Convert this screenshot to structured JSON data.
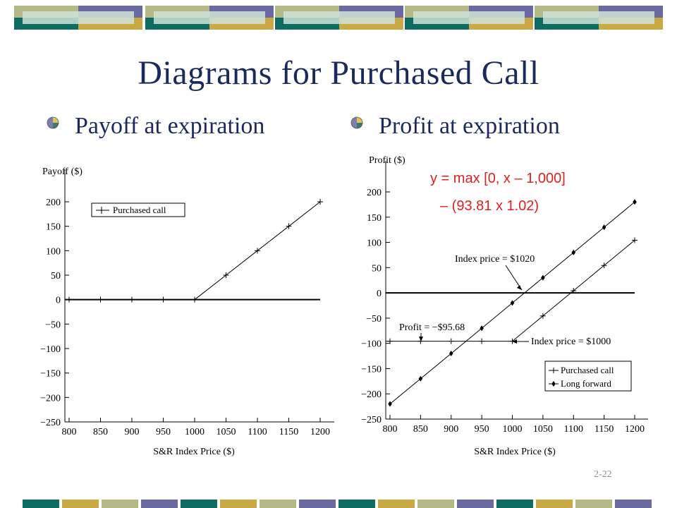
{
  "slide": {
    "title": "Diagrams for Purchased Call",
    "bullets": [
      "Payoff at expiration",
      "Profit at expiration"
    ],
    "page_number": "2-22"
  },
  "colors": {
    "title_text": "#1a2a5e",
    "band_teal": "#0e6b61",
    "band_gold": "#c9a846",
    "band_olive": "#b5b98a",
    "band_slate": "#6a6aa0",
    "annotation_red": "#e02020"
  },
  "chart_data": [
    {
      "type": "line",
      "ylabel": "Payoff ($)",
      "xlabel": "S&R Index Price ($)",
      "x_ticks": [
        800,
        850,
        900,
        950,
        1000,
        1050,
        1100,
        1150,
        1200
      ],
      "y_ticks": [
        200,
        150,
        100,
        50,
        0,
        -50,
        -100,
        -150,
        -200,
        -250
      ],
      "y_tick_labels": [
        "200",
        "150",
        "100",
        "50",
        "0",
        "−50",
        "−100",
        "−150",
        "−200",
        "−250"
      ],
      "xlim": [
        800,
        1200
      ],
      "ylim": [
        -250,
        200
      ],
      "legend": "top-left",
      "legend_entries": [
        {
          "label": "Purchased call",
          "marker": "plus"
        }
      ],
      "series": [
        {
          "name": "Purchased call",
          "marker": "plus",
          "x": [
            800,
            850,
            900,
            950,
            1000,
            1050,
            1100,
            1150,
            1200
          ],
          "y": [
            0,
            0,
            0,
            0,
            0,
            50,
            100,
            150,
            200
          ]
        }
      ]
    },
    {
      "type": "line",
      "ylabel": "Profit ($)",
      "xlabel": "S&R Index Price ($)",
      "x_ticks": [
        800,
        850,
        900,
        950,
        1000,
        1050,
        1100,
        1150,
        1200
      ],
      "y_ticks": [
        200,
        150,
        100,
        50,
        0,
        -50,
        -100,
        -150,
        -200,
        -250
      ],
      "y_tick_labels": [
        "200",
        "150",
        "100",
        "50",
        "0",
        "−50",
        "−100",
        "−150",
        "−200",
        "−250"
      ],
      "xlim": [
        800,
        1200
      ],
      "ylim": [
        -250,
        200
      ],
      "legend": "bottom-right",
      "legend_entries": [
        {
          "label": "Purchased call",
          "marker": "plus"
        },
        {
          "label": "Long forward",
          "marker": "diamond"
        }
      ],
      "series": [
        {
          "name": "Purchased call",
          "marker": "plus",
          "x": [
            800,
            850,
            900,
            950,
            1000,
            1050,
            1100,
            1150,
            1200
          ],
          "y": [
            -95.68,
            -95.68,
            -95.68,
            -95.68,
            -95.68,
            -45.68,
            4.32,
            54.32,
            104.32
          ]
        },
        {
          "name": "Long forward",
          "marker": "diamond",
          "x": [
            800,
            850,
            900,
            950,
            1000,
            1050,
            1100,
            1150,
            1200
          ],
          "y": [
            -220,
            -170,
            -120,
            -70,
            -20,
            30,
            80,
            130,
            180
          ]
        }
      ],
      "annotations": {
        "index_1020": "Index price = $1020",
        "profit_label": "Profit = −$95.68",
        "index_1000": "Index price = $1000",
        "formula_line1": "y = max [0, x – 1,000]",
        "formula_line2": "– (93.81 x 1.02)"
      }
    }
  ]
}
